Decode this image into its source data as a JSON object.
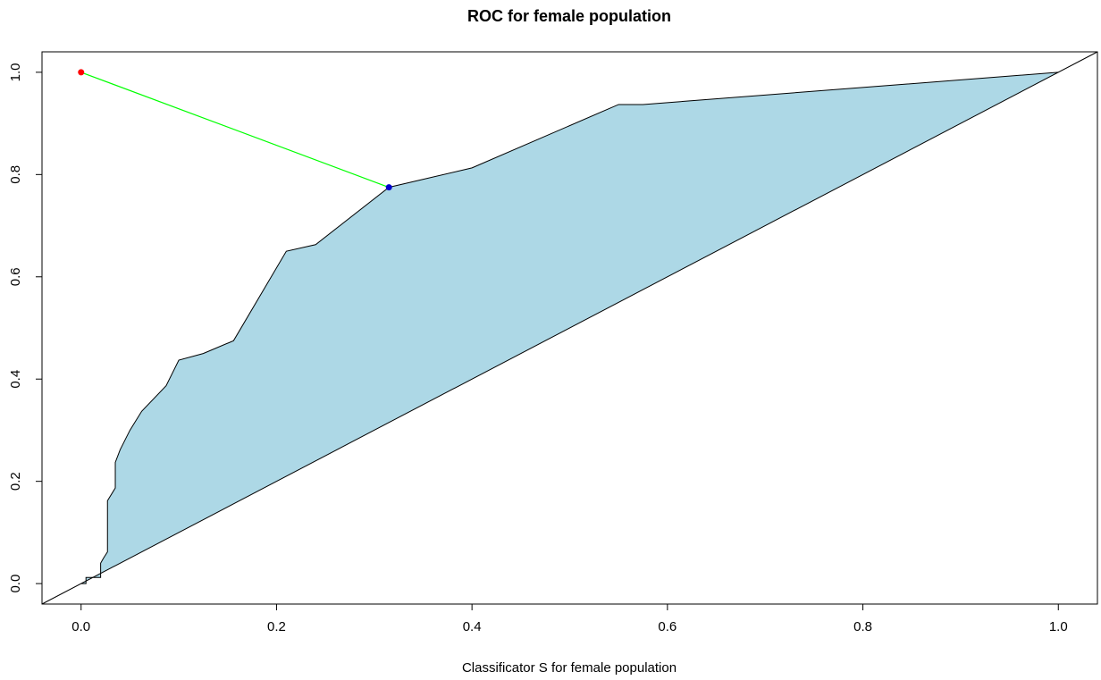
{
  "chart_data": {
    "type": "line",
    "title": "ROC for female population",
    "xlabel": "Classificator S for female population",
    "ylabel": "",
    "xlim": [
      -0.04,
      1.04
    ],
    "ylim": [
      -0.04,
      1.04
    ],
    "x_ticks": [
      0.0,
      0.2,
      0.4,
      0.6,
      0.8,
      1.0
    ],
    "x_tick_labels": [
      "0.0",
      "0.2",
      "0.4",
      "0.6",
      "0.8",
      "1.0"
    ],
    "y_ticks": [
      0.0,
      0.2,
      0.4,
      0.6,
      0.8,
      1.0
    ],
    "y_tick_labels": [
      "0.0",
      "0.2",
      "0.4",
      "0.6",
      "0.8",
      "1.0"
    ],
    "grid": false,
    "series": [
      {
        "kind": "roc-curve",
        "fill_color": "#add8e6",
        "line_color": "#000000",
        "x": [
          0.0,
          0.005,
          0.005,
          0.02,
          0.02,
          0.023,
          0.027,
          0.027,
          0.035,
          0.035,
          0.04,
          0.05,
          0.062,
          0.087,
          0.1,
          0.125,
          0.156,
          0.21,
          0.24,
          0.315,
          0.4,
          0.55,
          0.575,
          1.0
        ],
        "y": [
          0.0,
          0.0,
          0.012,
          0.012,
          0.04,
          0.05,
          0.062,
          0.162,
          0.187,
          0.237,
          0.262,
          0.3,
          0.337,
          0.387,
          0.437,
          0.45,
          0.475,
          0.65,
          0.663,
          0.775,
          0.813,
          0.937,
          0.937,
          1.0
        ]
      },
      {
        "kind": "diagonal",
        "line_color": "#000000",
        "x": [
          -0.04,
          1.04
        ],
        "y": [
          -0.04,
          1.04
        ]
      },
      {
        "kind": "optimal-distance",
        "line_color": "#00ff00",
        "x": [
          0.0,
          0.315
        ],
        "y": [
          1.0,
          0.775
        ]
      }
    ],
    "points": [
      {
        "kind": "ideal-point",
        "x": 0.0,
        "y": 1.0,
        "color": "#ff0000"
      },
      {
        "kind": "optimal-threshold",
        "x": 0.315,
        "y": 0.775,
        "color": "#0000cd"
      }
    ]
  }
}
